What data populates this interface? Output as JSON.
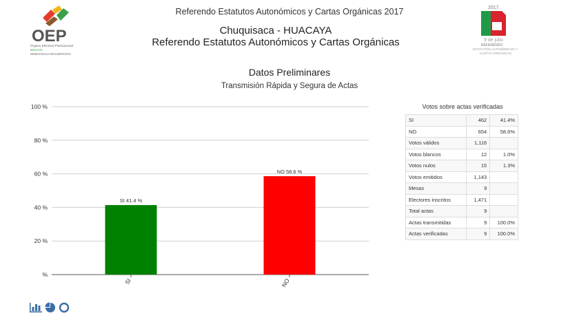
{
  "header": {
    "top_title": "Referendo Estatutos Autonómicos y Cartas Orgánicas 2017",
    "region_line1": "Chuquisaca - HUACAYA",
    "region_line2": "Referendo Estatutos Autonómicos y Cartas Orgánicas",
    "subtitle": "Datos Preliminares",
    "subsubtitle": "Transmisión Rápida y Segura de Actas"
  },
  "logos": {
    "oep_text": "OEP",
    "oep_caption1": "Órgano Electoral Plurinacional",
    "oep_caption2": "BOLIVIA",
    "oep_caption3": "DEMOCRACIA EN EJERCICIO",
    "ref_year": "2017",
    "ref_date": "9 de julio",
    "ref_caption1": "REFERENDO",
    "ref_caption2": "ESTATUTOS AUTONÓMICOS Y",
    "ref_caption3": "CARTAS ORGÁNICAS"
  },
  "chart_data": {
    "type": "bar",
    "categories": [
      "SI",
      "NO"
    ],
    "values": [
      41.4,
      58.6
    ],
    "data_labels": [
      "SI 41.4 %",
      "NO 58.6 %"
    ],
    "colors": [
      "#008000",
      "#ff0000"
    ],
    "y_ticks": [
      "100 %",
      "80 %",
      "60 %",
      "40 %",
      "20 %",
      "%"
    ],
    "y_tick_values": [
      100,
      80,
      60,
      40,
      20,
      0
    ],
    "ylim": [
      0,
      100
    ],
    "grid": true
  },
  "table": {
    "title": "Votos sobre actas verificadas",
    "rows": [
      {
        "label": "SI",
        "value": "462",
        "pct": "41.4%"
      },
      {
        "label": "NO",
        "value": "654",
        "pct": "58.6%"
      },
      {
        "label": "Votos válidos",
        "value": "1,116",
        "pct": ""
      },
      {
        "label": "Votos blancos",
        "value": "12",
        "pct": "1.0%"
      },
      {
        "label": "Votos nulos",
        "value": "15",
        "pct": "1.3%"
      },
      {
        "label": "Votos emitidos",
        "value": "1,143",
        "pct": ""
      },
      {
        "label": "Mesas",
        "value": "9",
        "pct": ""
      },
      {
        "label": "Electores inscritos",
        "value": "1,471",
        "pct": ""
      },
      {
        "label": "Total actas",
        "value": "9",
        "pct": ""
      },
      {
        "label": "Actas transmitidas",
        "value": "9",
        "pct": "100.0%"
      },
      {
        "label": "Actas verificadas",
        "value": "9",
        "pct": "100.0%"
      }
    ]
  },
  "toolbar": {
    "icons": [
      "bar-chart-icon",
      "pie-chart-icon",
      "donut-chart-icon"
    ],
    "color": "#3a6ea5"
  }
}
